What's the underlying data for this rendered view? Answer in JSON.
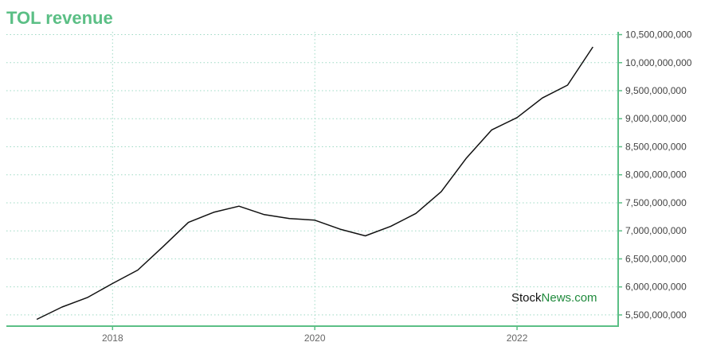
{
  "chart_data": {
    "type": "line",
    "title": "TOL revenue",
    "xlabel": "",
    "ylabel": "",
    "x_ticks": [
      "2018",
      "2020",
      "2022"
    ],
    "y_ticks": [
      "5,500,000,000",
      "6,000,000,000",
      "6,500,000,000",
      "7,000,000,000",
      "7,500,000,000",
      "8,000,000,000",
      "8,500,000,000",
      "9,000,000,000",
      "9,500,000,000",
      "10,000,000,000",
      "10,500,000,000"
    ],
    "ylim": [
      5300000000,
      10550000000
    ],
    "xlim": [
      2016.95,
      2023.0
    ],
    "grid": true,
    "y_axis_position": "right",
    "x": [
      2017.25,
      2017.5,
      2017.75,
      2018.0,
      2018.25,
      2018.5,
      2018.75,
      2019.0,
      2019.25,
      2019.5,
      2019.75,
      2020.0,
      2020.25,
      2020.5,
      2020.75,
      2021.0,
      2021.25,
      2021.5,
      2021.75,
      2022.0,
      2022.25,
      2022.5,
      2022.75
    ],
    "values": [
      5420000000,
      5640000000,
      5810000000,
      6060000000,
      6300000000,
      6720000000,
      7150000000,
      7330000000,
      7440000000,
      7290000000,
      7220000000,
      7190000000,
      7030000000,
      6910000000,
      7080000000,
      7310000000,
      7700000000,
      8300000000,
      8800000000,
      9020000000,
      9370000000,
      9600000000,
      10280000000
    ],
    "colors": {
      "line": "#111111",
      "accent": "#5bbf85",
      "grid": "#9ed9c4"
    }
  },
  "watermark": {
    "part1": "Stock",
    "part2": "News.com"
  }
}
